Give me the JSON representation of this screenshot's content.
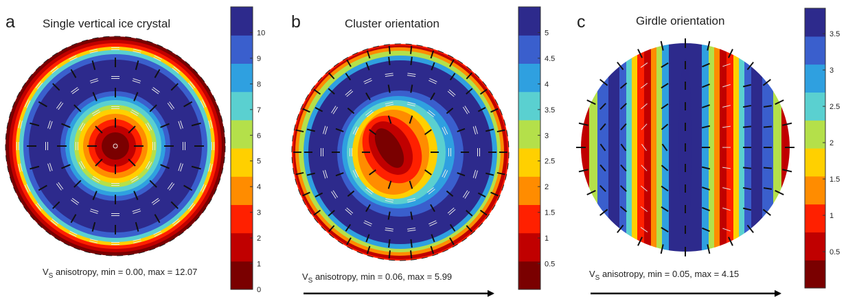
{
  "figure": {
    "panels": [
      {
        "letter": "a",
        "title": "Single vertical ice crystal",
        "caption": {
          "v": "V",
          "sub": "S",
          "rest": " anisotropy, min = 0.00, max = 12.07"
        },
        "arrow": false,
        "colorbar": {
          "min": 0,
          "max": 11,
          "ticks": [
            "0",
            "1",
            "2",
            "3",
            "4",
            "5",
            "6",
            "7",
            "8",
            "9",
            "10"
          ],
          "tick_values": [
            0,
            1,
            2,
            3,
            4,
            5,
            6,
            7,
            8,
            9,
            10
          ]
        }
      },
      {
        "letter": "b",
        "title": "Cluster orientation",
        "caption": {
          "v": "V",
          "sub": "S",
          "rest": " anisotropy, min = 0.06, max = 5.99"
        },
        "arrow": true,
        "colorbar": {
          "min": 0,
          "max": 5.5,
          "ticks": [
            "0.5",
            "1",
            "1.5",
            "2",
            "2.5",
            "3",
            "3.5",
            "4",
            "4.5",
            "5"
          ],
          "tick_values": [
            0.5,
            1,
            1.5,
            2,
            2.5,
            3,
            3.5,
            4,
            4.5,
            5
          ]
        }
      },
      {
        "letter": "c",
        "title": "Girdle orientation",
        "caption": {
          "v": "V",
          "sub": "S",
          "rest": " anisotropy, min = 0.05, max = 4.15"
        },
        "arrow": true,
        "colorbar": {
          "min": 0,
          "max": 3.85,
          "ticks": [
            "0.5",
            "1",
            "1.5",
            "2",
            "2.5",
            "3",
            "3.5"
          ],
          "tick_values": [
            0.5,
            1,
            1.5,
            2,
            2.5,
            3,
            3.5
          ]
        }
      }
    ]
  },
  "chart_data": [
    {
      "type": "heatmap",
      "projection": "stereographic",
      "title": "Single vertical ice crystal",
      "pattern": "radial",
      "value_range": [
        0.0,
        12.07
      ],
      "colorbar_range": [
        0,
        11
      ],
      "colormap": "jet-reversed"
    },
    {
      "type": "heatmap",
      "projection": "stereographic",
      "title": "Cluster orientation",
      "pattern": "elliptical-cluster",
      "value_range": [
        0.06,
        5.99
      ],
      "colorbar_range": [
        0,
        5.5
      ],
      "colormap": "jet-reversed"
    },
    {
      "type": "heatmap",
      "projection": "stereographic",
      "title": "Girdle orientation",
      "pattern": "vertical-girdle",
      "value_range": [
        0.05,
        4.15
      ],
      "colorbar_range": [
        0,
        3.85
      ],
      "colormap": "jet-reversed"
    }
  ],
  "colors": {
    "cmap": [
      "#7a0000",
      "#c00000",
      "#ff2000",
      "#ff8c00",
      "#ffd000",
      "#b4e04a",
      "#5ad0d0",
      "#2fa0e0",
      "#3a5fcd",
      "#2d2a8c"
    ],
    "tick_dark": "#111111",
    "tick_light": "#e8e8e8"
  }
}
